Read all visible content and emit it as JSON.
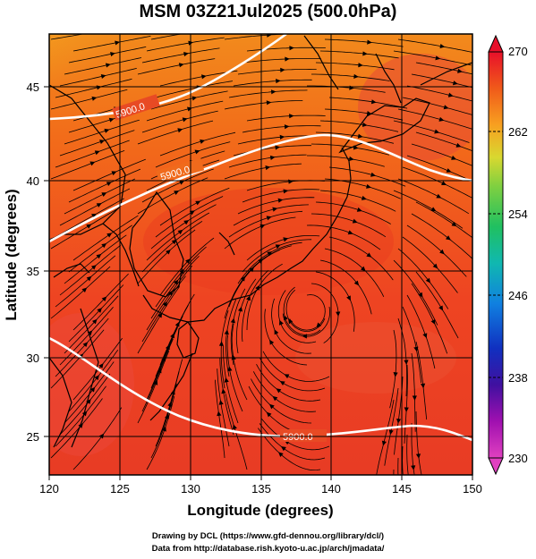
{
  "title": "MSM 03Z21Jul2025 (500.0hPa)",
  "map": {
    "xaxis": {
      "label": "Longitude (degrees)",
      "range": [
        120,
        150
      ],
      "ticks": [
        "120",
        "125",
        "130",
        "135",
        "140",
        "145",
        "150"
      ]
    },
    "yaxis": {
      "label": "Latitude  (degrees)",
      "range": [
        22.5,
        47.5
      ],
      "ticks": [
        "25",
        "30",
        "35",
        "40",
        "45"
      ]
    },
    "grid": true,
    "contour_labels": [
      "5900.0",
      "5900.0",
      "5900.0"
    ]
  },
  "colorbar": {
    "ticks": [
      "270",
      "262",
      "254",
      "246",
      "238",
      "230"
    ],
    "colors": [
      "#e8102a",
      "#f05a1a",
      "#f8a020",
      "#d8d830",
      "#80d040",
      "#20c060",
      "#10b8b0",
      "#1080e0",
      "#1030c0",
      "#4010a0",
      "#a010b0",
      "#e040c0"
    ]
  },
  "credits": {
    "line1": "Drawing by DCL (https://www.gfd-dennou.org/library/dcl/)",
    "line2": "Data from http://database.rish.kyoto-u.ac.jp/arch/jmadata/"
  }
}
